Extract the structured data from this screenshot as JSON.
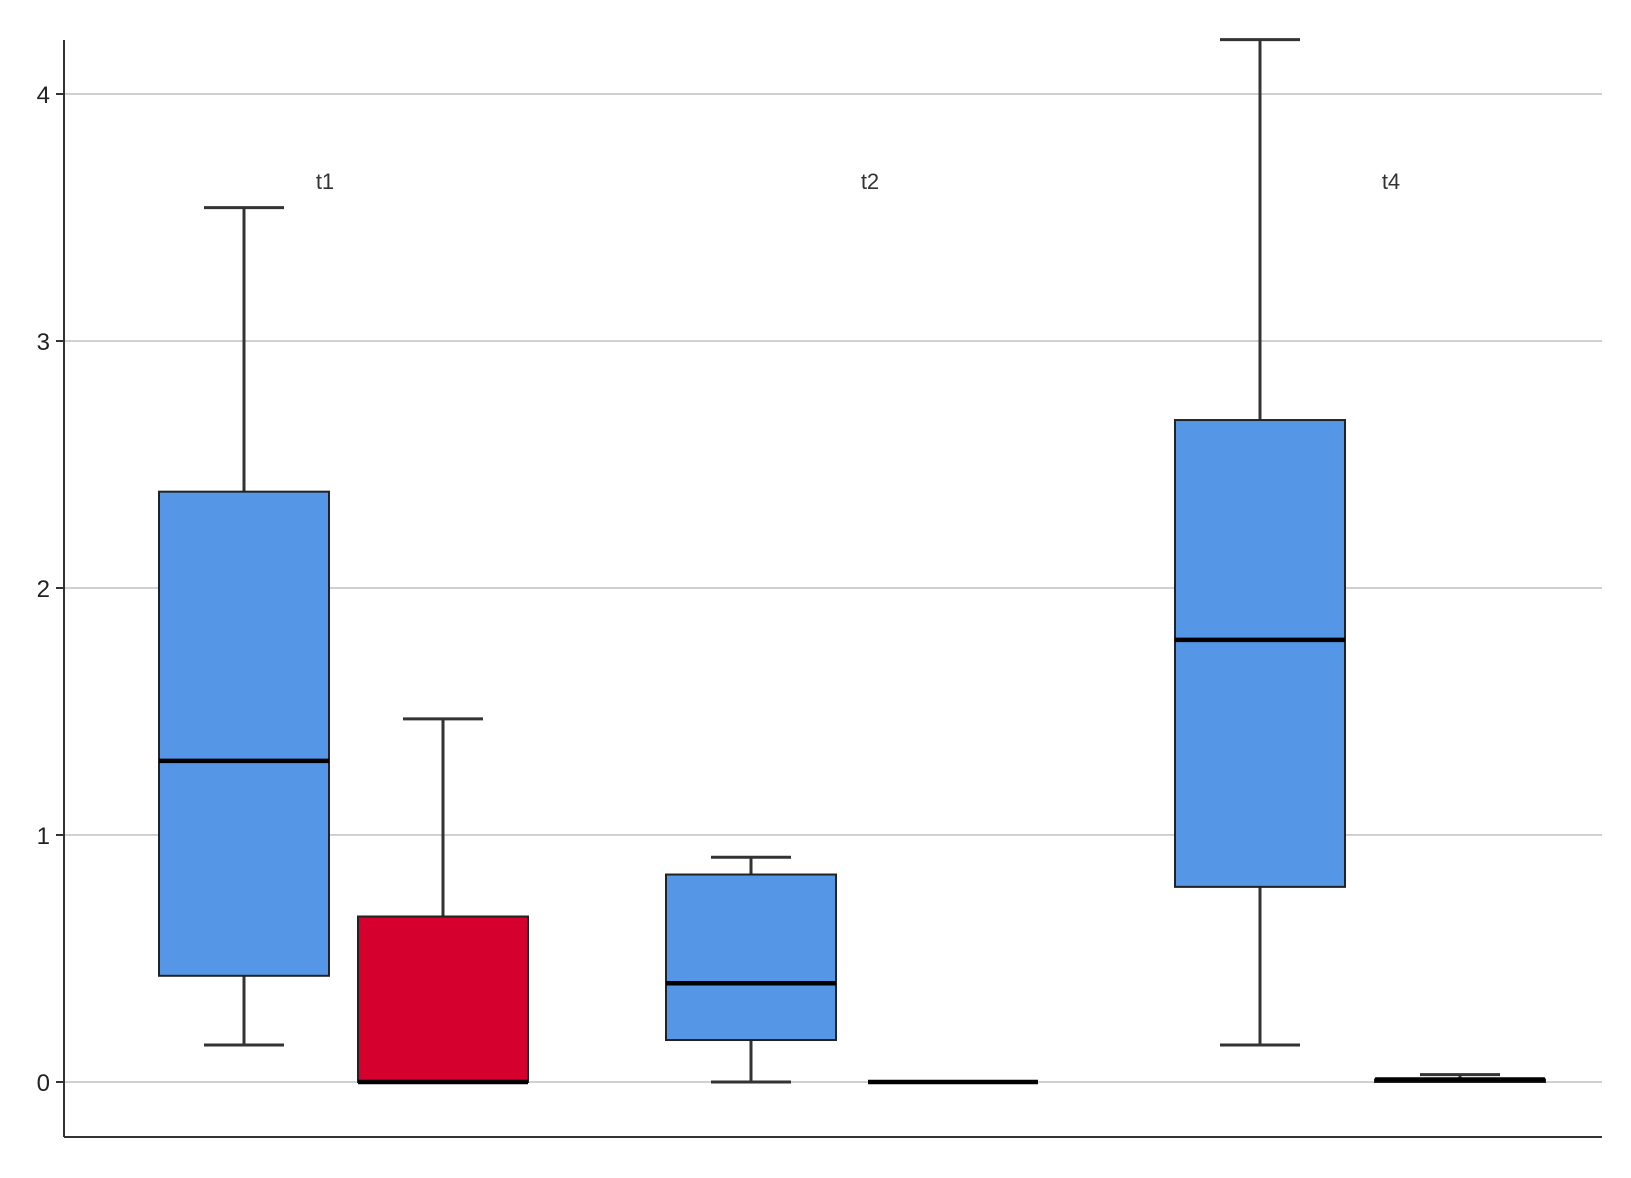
{
  "chart_data": {
    "type": "box",
    "title": "",
    "xlabel": "",
    "ylabel": "",
    "ylim": [
      -0.22,
      4.22
    ],
    "yticks": [
      0,
      1,
      2,
      3,
      4
    ],
    "ytick_labels": [
      "0",
      "1",
      "2",
      "3",
      "4"
    ],
    "grid": "horizontal",
    "groups": [
      "t1",
      "t2",
      "t4"
    ],
    "colors": {
      "blue_box": "#5596e6",
      "red_box": "#d5002e",
      "median": "#000000",
      "whisker": "#333333",
      "gridline": "#d0d0d0",
      "axis": "#333333"
    },
    "boxes": [
      {
        "group": "t1",
        "color": "blue_box",
        "whisker_low": 0.15,
        "q1": 0.43,
        "median": 1.3,
        "q3": 2.39,
        "whisker_high": 3.54
      },
      {
        "group": "t1",
        "color": "red_box",
        "whisker_low": 0.0,
        "q1": 0.0,
        "median": 0.0,
        "q3": 0.67,
        "whisker_high": 1.47
      },
      {
        "group": "t2",
        "color": "blue_box",
        "whisker_low": 0.0,
        "q1": 0.17,
        "median": 0.4,
        "q3": 0.84,
        "whisker_high": 0.91
      },
      {
        "group": "t2",
        "color": "red_box",
        "whisker_low": 0.0,
        "q1": 0.0,
        "median": 0.0,
        "q3": 0.0,
        "whisker_high": 0.0
      },
      {
        "group": "t4",
        "color": "blue_box",
        "whisker_low": 0.15,
        "q1": 0.79,
        "median": 1.79,
        "q3": 2.68,
        "whisker_high": 4.22
      },
      {
        "group": "t4",
        "color": "red_box",
        "whisker_low": 0.0,
        "q1": 0.0,
        "median": 0.01,
        "q3": 0.01,
        "whisker_high": 0.03
      }
    ]
  }
}
